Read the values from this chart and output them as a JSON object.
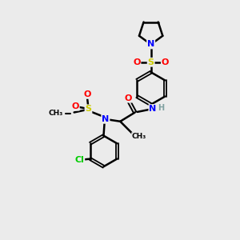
{
  "bg_color": "#ebebeb",
  "atom_colors": {
    "C": "#000000",
    "N": "#0000FF",
    "O": "#FF0000",
    "S": "#CCCC00",
    "Cl": "#00CC00",
    "H": "#7fa0a0"
  },
  "bond_color": "#000000",
  "bond_width": 1.8
}
